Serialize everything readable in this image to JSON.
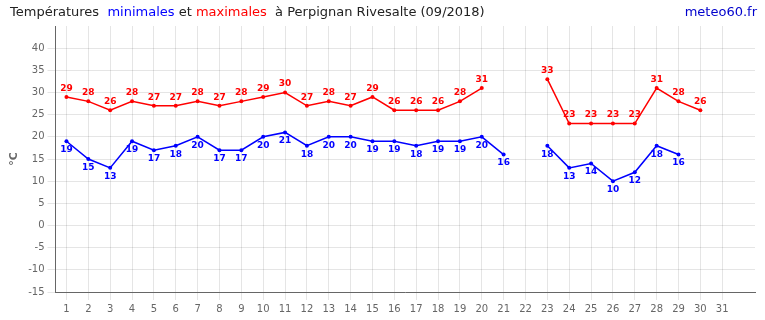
{
  "chart_data": {
    "type": "line",
    "title": "Températures  minimales et maximales  à Perpignan Rivesalte (09/2018)",
    "ylabel": "°C",
    "annotations": [
      {
        "text": "meteo60.fr",
        "color": "#0000cc"
      }
    ],
    "x": [
      1,
      2,
      3,
      4,
      5,
      6,
      7,
      8,
      9,
      10,
      11,
      12,
      13,
      14,
      15,
      16,
      17,
      18,
      19,
      20,
      21,
      22,
      23,
      24,
      25,
      26,
      27,
      28,
      29,
      30,
      31
    ],
    "series": [
      {
        "name": "minimales",
        "color": "#0000ff",
        "values": [
          19,
          15,
          13,
          19,
          17,
          18,
          20,
          17,
          17,
          20,
          21,
          18,
          20,
          20,
          19,
          19,
          18,
          19,
          19,
          20,
          16,
          null,
          18,
          13,
          14,
          10,
          12,
          18,
          16,
          null,
          null
        ]
      },
      {
        "name": "maximales",
        "color": "#ff0000",
        "values": [
          29,
          28,
          26,
          28,
          27,
          27,
          28,
          27,
          28,
          29,
          30,
          27,
          28,
          27,
          29,
          26,
          26,
          26,
          28,
          31,
          null,
          null,
          33,
          23,
          23,
          23,
          23,
          31,
          28,
          26,
          null
        ]
      }
    ],
    "xlim": [
      0.5,
      32.5
    ],
    "xticks": [
      1,
      2,
      3,
      4,
      5,
      6,
      7,
      8,
      9,
      10,
      11,
      12,
      13,
      14,
      15,
      16,
      17,
      18,
      19,
      20,
      21,
      22,
      23,
      24,
      25,
      26,
      27,
      28,
      29,
      30,
      31
    ],
    "ylim": [
      -15,
      45
    ],
    "yticks": [
      -15,
      -10,
      -5,
      0,
      5,
      10,
      15,
      20,
      25,
      30,
      35,
      40
    ],
    "grid": true,
    "data_labels": true,
    "marker": "circle"
  }
}
